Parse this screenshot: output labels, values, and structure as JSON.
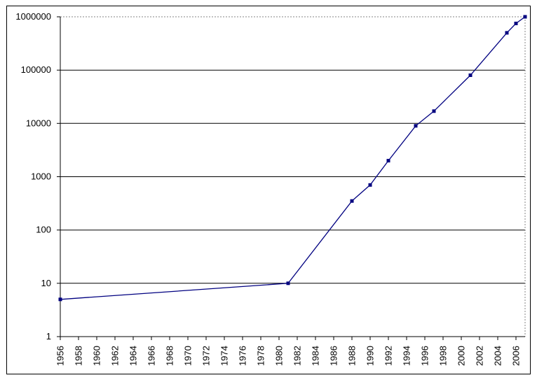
{
  "chart": {
    "background_color": "#ffffff",
    "outer_border_color": "#000000",
    "title": "",
    "legend": "none"
  },
  "chart_data": {
    "type": "line",
    "y_scale": "log",
    "xlim": [
      1956,
      2007
    ],
    "ylim": [
      1,
      1000000
    ],
    "x": [
      1956,
      1981,
      1988,
      1990,
      1992,
      1995,
      1997,
      2001,
      2005,
      2006,
      2007
    ],
    "values": [
      5,
      10,
      350,
      700,
      2000,
      9000,
      17000,
      80000,
      500000,
      750000,
      1000000
    ],
    "series_color": "#000080",
    "marker": "square",
    "grid": "horizontal",
    "gridline_color": "#000000",
    "dotted_border_color": "#848484",
    "axis_color": "#000000",
    "y_tick_labels": [
      "1",
      "10",
      "100",
      "1000",
      "10000",
      "100000",
      "1000000"
    ],
    "x_tick_labels": [
      "1956",
      "1958",
      "1960",
      "1962",
      "1964",
      "1966",
      "1968",
      "1970",
      "1972",
      "1974",
      "1976",
      "1978",
      "1980",
      "1982",
      "1984",
      "1986",
      "1988",
      "1990",
      "1992",
      "1994",
      "1996",
      "1998",
      "2000",
      "2002",
      "2004",
      "2006"
    ]
  }
}
